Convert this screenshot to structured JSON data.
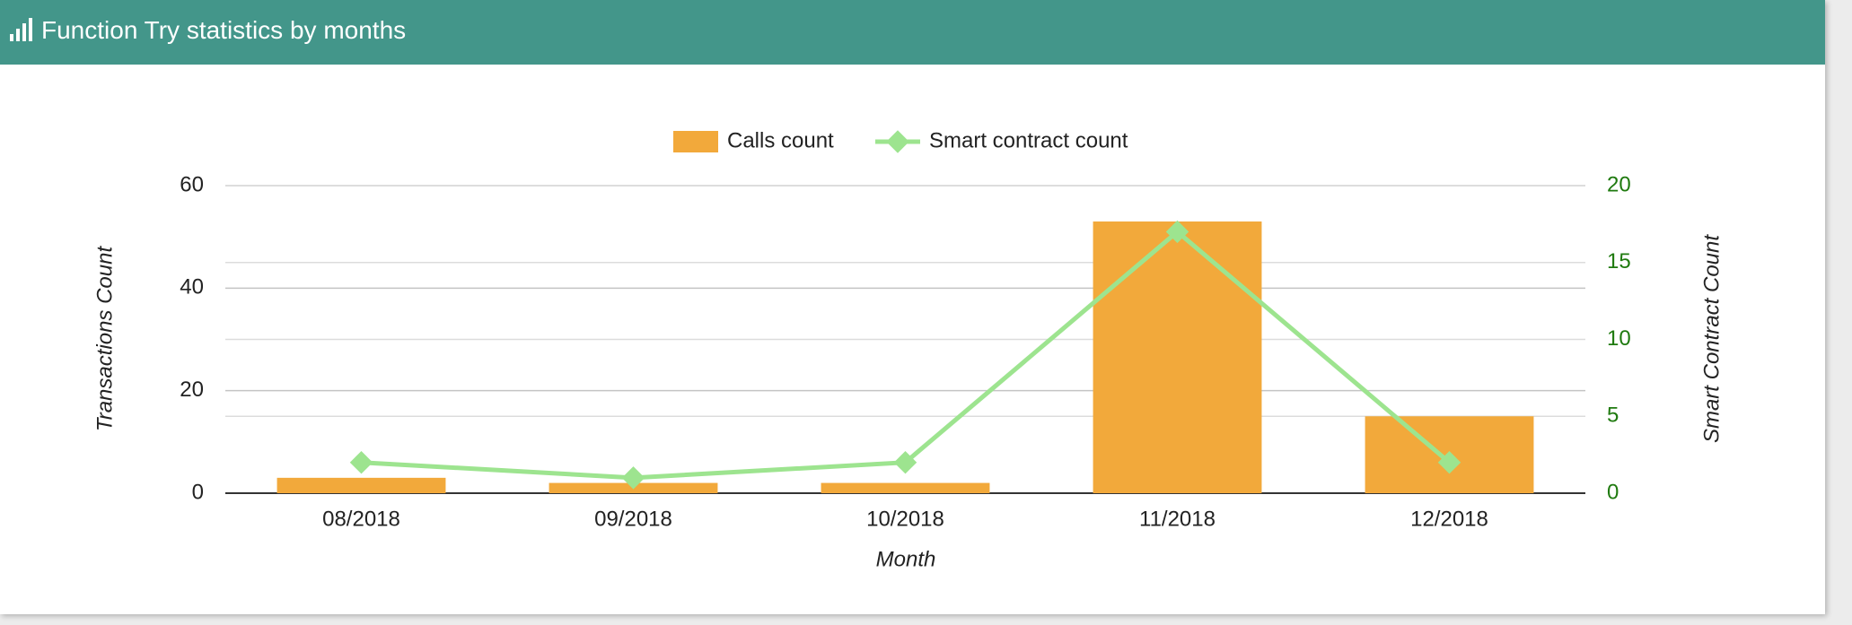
{
  "header": {
    "title": "Function Try statistics by months"
  },
  "chart_data": {
    "type": "bar-line",
    "categories": [
      "08/2018",
      "09/2018",
      "10/2018",
      "11/2018",
      "12/2018"
    ],
    "series": [
      {
        "name": "Calls count",
        "type": "bar",
        "color": "#f2a93b",
        "values": [
          3,
          2,
          2,
          53,
          15
        ]
      },
      {
        "name": "Smart contract count",
        "type": "line",
        "color": "#9de48f",
        "axis": "y2",
        "values": [
          2,
          1,
          2,
          17,
          2
        ]
      }
    ],
    "ylim": [
      0,
      60
    ],
    "yticks": [
      0,
      20,
      40,
      60
    ],
    "y2lim": [
      0,
      20
    ],
    "y2ticks": [
      0,
      5,
      10,
      15,
      20
    ],
    "ylabel": "Transactions Count",
    "y2label": "Smart Contract Count",
    "xlabel": "Month",
    "y2_color": "#1f7a0f",
    "grid": true,
    "legend": "top"
  }
}
